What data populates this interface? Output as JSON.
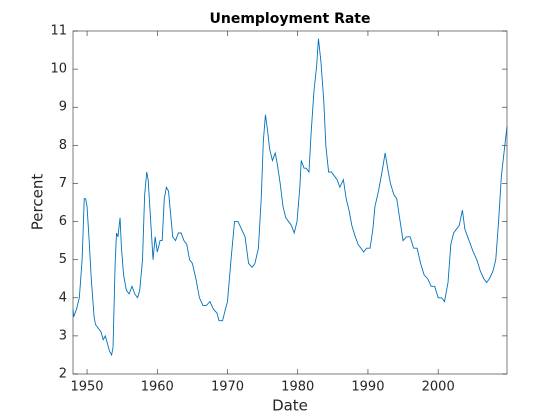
{
  "chart_data": {
    "type": "line",
    "title": "Unemployment Rate",
    "x_label": "Date",
    "y_label": "Percent",
    "series": [
      {
        "color": "#0072bd",
        "x": [
          1948.0,
          1948.1,
          1948.5,
          1948.9,
          1949.3,
          1949.6,
          1949.8,
          1950.0,
          1950.3,
          1950.6,
          1951.0,
          1951.2,
          1951.6,
          1952.0,
          1952.3,
          1952.6,
          1952.9,
          1953.2,
          1953.5,
          1953.7,
          1954.0,
          1954.2,
          1954.4,
          1954.7,
          1954.9,
          1955.2,
          1955.6,
          1956.0,
          1956.4,
          1956.8,
          1957.2,
          1957.5,
          1957.9,
          1958.2,
          1958.5,
          1958.7,
          1959.0,
          1959.4,
          1959.7,
          1960.0,
          1960.4,
          1960.7,
          1961.0,
          1961.3,
          1961.6,
          1961.9,
          1962.2,
          1962.6,
          1963.0,
          1963.4,
          1963.8,
          1964.2,
          1964.6,
          1965.0,
          1965.5,
          1966.0,
          1966.5,
          1967.0,
          1967.5,
          1968.0,
          1968.5,
          1968.8,
          1969.3,
          1969.7,
          1970.0,
          1970.5,
          1971.0,
          1971.5,
          1972.0,
          1972.5,
          1973.0,
          1973.5,
          1973.9,
          1974.4,
          1974.8,
          1975.1,
          1975.4,
          1975.7,
          1976.0,
          1976.4,
          1976.8,
          1977.1,
          1977.5,
          1977.9,
          1978.3,
          1978.7,
          1979.1,
          1979.5,
          1979.9,
          1980.3,
          1980.5,
          1980.9,
          1981.2,
          1981.6,
          1981.9,
          1982.3,
          1982.7,
          1982.95,
          1983.3,
          1983.7,
          1984.0,
          1984.4,
          1984.8,
          1985.2,
          1985.6,
          1986.0,
          1986.5,
          1986.9,
          1987.3,
          1987.7,
          1988.2,
          1988.6,
          1989.0,
          1989.4,
          1989.8,
          1990.3,
          1990.7,
          1991.0,
          1991.5,
          1992.0,
          1992.45,
          1992.8,
          1993.2,
          1993.7,
          1994.1,
          1994.5,
          1995.0,
          1995.5,
          1996.0,
          1996.5,
          1997.0,
          1997.5,
          1998.0,
          1998.5,
          1999.0,
          1999.5,
          2000.0,
          2000.5,
          2000.9,
          2001.4,
          2001.8,
          2002.2,
          2002.6,
          2003.0,
          2003.45,
          2003.8,
          2004.2,
          2004.6,
          2005.0,
          2005.5,
          2006.0,
          2006.5,
          2006.9,
          2007.3,
          2007.8,
          2008.2,
          2008.6,
          2009.0,
          2009.8
        ],
        "values": [
          3.7,
          3.5,
          3.7,
          4.0,
          5.0,
          6.6,
          6.6,
          6.4,
          5.5,
          4.5,
          3.5,
          3.3,
          3.2,
          3.1,
          2.9,
          3.0,
          2.8,
          2.6,
          2.5,
          2.7,
          4.9,
          5.7,
          5.6,
          6.1,
          5.3,
          4.6,
          4.2,
          4.1,
          4.3,
          4.1,
          4.0,
          4.2,
          5.0,
          6.7,
          7.3,
          7.1,
          6.2,
          5.0,
          5.6,
          5.2,
          5.5,
          5.5,
          6.6,
          6.9,
          6.8,
          6.2,
          5.6,
          5.5,
          5.7,
          5.7,
          5.5,
          5.4,
          5.0,
          4.9,
          4.5,
          4.0,
          3.8,
          3.8,
          3.9,
          3.7,
          3.6,
          3.4,
          3.4,
          3.7,
          3.9,
          5.0,
          6.0,
          6.0,
          5.8,
          5.6,
          4.9,
          4.8,
          4.9,
          5.3,
          6.6,
          8.1,
          8.8,
          8.4,
          7.9,
          7.6,
          7.8,
          7.5,
          7.0,
          6.4,
          6.1,
          6.0,
          5.9,
          5.7,
          6.0,
          6.9,
          7.6,
          7.4,
          7.4,
          7.3,
          8.3,
          9.4,
          10.1,
          10.8,
          10.2,
          9.2,
          8.0,
          7.3,
          7.3,
          7.2,
          7.1,
          6.9,
          7.1,
          6.6,
          6.3,
          5.9,
          5.6,
          5.4,
          5.3,
          5.2,
          5.3,
          5.3,
          5.8,
          6.4,
          6.8,
          7.3,
          7.8,
          7.4,
          7.0,
          6.7,
          6.6,
          6.1,
          5.5,
          5.6,
          5.6,
          5.3,
          5.3,
          4.9,
          4.6,
          4.5,
          4.3,
          4.3,
          4.0,
          4.0,
          3.9,
          4.4,
          5.4,
          5.7,
          5.8,
          5.9,
          6.3,
          5.8,
          5.6,
          5.4,
          5.2,
          5.0,
          4.7,
          4.5,
          4.4,
          4.5,
          4.7,
          5.0,
          6.0,
          7.2,
          8.5
        ]
      }
    ],
    "xlim": [
      1948,
      2009.8
    ],
    "xticks": [
      1950,
      1960,
      1970,
      1980,
      1990,
      2000
    ],
    "ylim": [
      2,
      11
    ],
    "yticks": [
      2,
      3,
      4,
      5,
      6,
      7,
      8,
      9,
      10,
      11
    ]
  }
}
